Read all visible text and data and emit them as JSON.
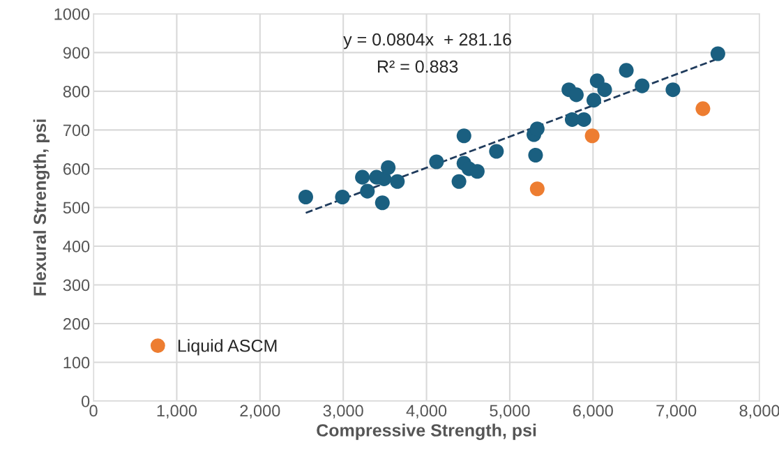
{
  "chart_data": {
    "type": "scatter",
    "xlabel": "Compressive Strength, psi",
    "ylabel": "Flexural Strength, psi",
    "xlim": [
      0,
      8000
    ],
    "xticks": [
      {
        "value": 0,
        "label": "0"
      },
      {
        "value": 1000,
        "label": "1,000"
      },
      {
        "value": 2000,
        "label": "2,000"
      },
      {
        "value": 3000,
        "label": "3,000"
      },
      {
        "value": 4000,
        "label": "4,000"
      },
      {
        "value": 5000,
        "label": "5,000"
      },
      {
        "value": 6000,
        "label": "6,000"
      },
      {
        "value": 7000,
        "label": "7,000"
      },
      {
        "value": 8000,
        "label": "8,000"
      }
    ],
    "ylim": [
      0,
      1000
    ],
    "yticks": [
      0,
      100,
      200,
      300,
      400,
      500,
      600,
      700,
      800,
      900,
      1000
    ],
    "grid": true,
    "legend": "bottom left",
    "marker": "circle",
    "annotations": [
      "y = 0.0804x  + 281.16",
      "R² = 0.883"
    ],
    "series": [
      {
        "color": "#1a5f80",
        "x": [
          2550,
          2990,
          3230,
          3290,
          3400,
          3470,
          3490,
          3540,
          3650,
          4120,
          4390,
          4450,
          4450,
          4510,
          4610,
          4840,
          5290,
          5330,
          5310,
          5710,
          5800,
          5750,
          5890,
          6010,
          6050,
          6140,
          6400,
          6590,
          6960,
          7500
        ],
        "values": [
          527,
          527,
          578,
          542,
          578,
          512,
          574,
          603,
          567,
          618,
          567,
          685,
          614,
          600,
          593,
          645,
          688,
          703,
          635,
          804,
          791,
          727,
          727,
          777,
          827,
          804,
          854,
          814,
          804,
          897
        ]
      },
      {
        "name": "Liquid ASCM",
        "color": "#ed7d31",
        "x": [
          5330,
          5990,
          7320
        ],
        "values": [
          548,
          685,
          755
        ]
      },
      {
        "type": "line",
        "color": "#1f3b5c",
        "line_style": "dashed",
        "marker": "none",
        "x": [
          2550,
          7500
        ],
        "values": [
          486,
          884
        ]
      }
    ]
  }
}
